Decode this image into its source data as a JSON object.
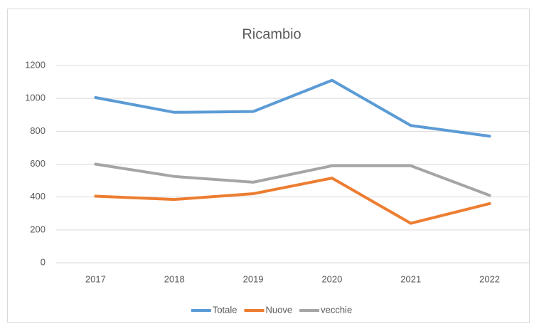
{
  "chart_data": {
    "type": "line",
    "title": "Ricambio",
    "categories": [
      "2017",
      "2018",
      "2019",
      "2020",
      "2021",
      "2022"
    ],
    "series": [
      {
        "name": "Totale",
        "color": "#5b9bd5",
        "values": [
          1005,
          915,
          920,
          1110,
          835,
          770
        ]
      },
      {
        "name": "Nuove",
        "color": "#ed7d31",
        "values": [
          405,
          385,
          420,
          515,
          240,
          360
        ]
      },
      {
        "name": "vecchie",
        "color": "#a5a5a5",
        "values": [
          600,
          525,
          490,
          590,
          590,
          410
        ]
      }
    ],
    "ylim": [
      0,
      1200
    ],
    "yticks": [
      0,
      200,
      400,
      600,
      800,
      1000,
      1200
    ],
    "grid": true,
    "legend": "bottom"
  }
}
